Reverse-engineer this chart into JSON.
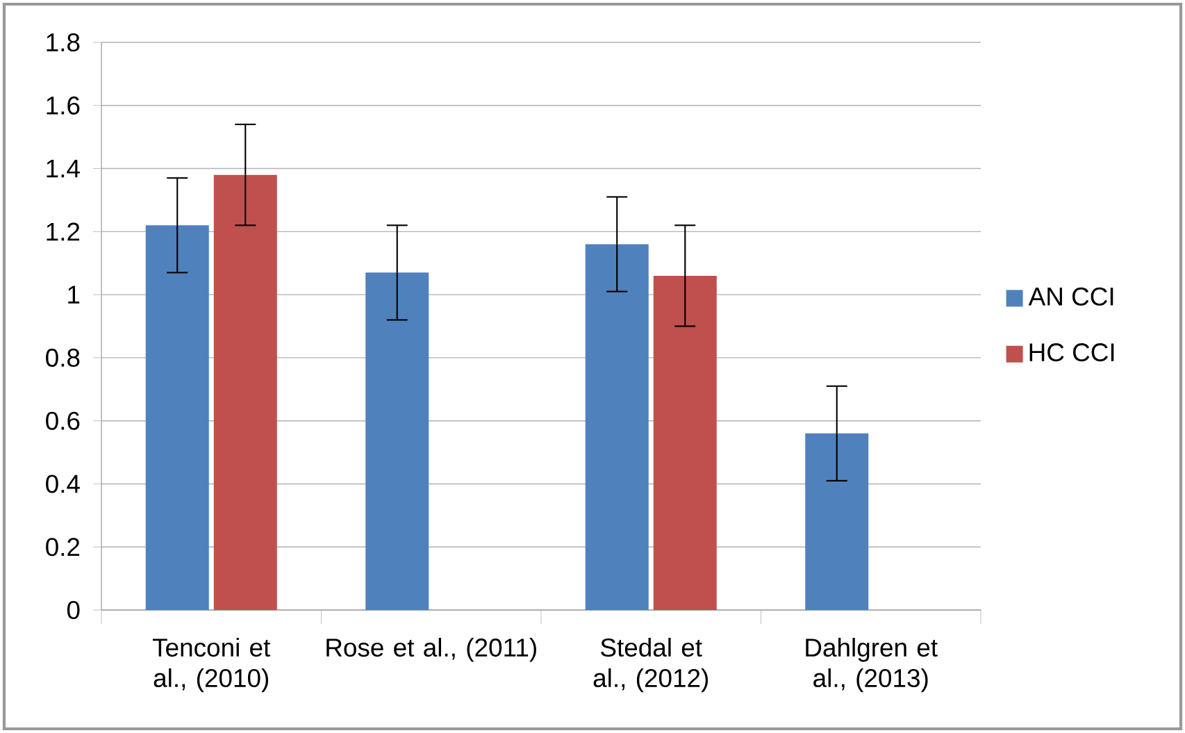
{
  "chart_data": {
    "type": "bar",
    "categories": [
      "Tenconi et al., (2010)",
      "Rose et al., (2011)",
      "Stedal et al., (2012)",
      "Dahlgren et al., (2013)"
    ],
    "series": [
      {
        "name": "AN CCI",
        "color": "#4f81bd",
        "values": [
          1.22,
          1.07,
          1.16,
          0.56
        ],
        "errors": [
          0.15,
          0.15,
          0.15,
          0.15
        ]
      },
      {
        "name": "HC CCI",
        "color": "#c0504d",
        "values": [
          1.38,
          null,
          1.06,
          null
        ],
        "errors": [
          0.16,
          null,
          0.16,
          null
        ]
      }
    ],
    "ylim": [
      0,
      1.8
    ],
    "yticks": [
      0,
      0.2,
      0.4,
      0.6,
      0.8,
      1,
      1.2,
      1.4,
      1.6,
      1.8
    ],
    "grid": "y",
    "legend": "right"
  }
}
